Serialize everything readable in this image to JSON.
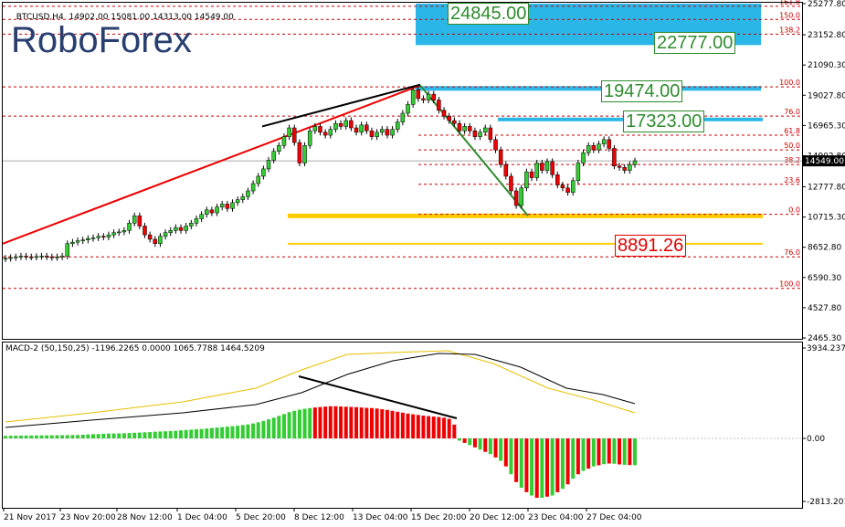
{
  "header": {
    "symbol": "BTCUSD,H4",
    "ohlc": "14902.00 15081.00 14313.00 14549.00",
    "macd": "MACD-2 (50,150,25) -1196.2265 0.0000 1065.7788 1464.5209"
  },
  "logo": {
    "text": "RoboForex"
  },
  "colors": {
    "bull": "#33cc33",
    "bear": "#ee0000",
    "signal": "#e6c000",
    "fib": "#cc0000",
    "zone_blue": "#2bb6e8",
    "zone_yellow": "#ffcc00"
  },
  "chart_data": [
    {
      "type": "candlestick",
      "x_tick_labels": [
        "21 Nov 2017",
        "23 Nov 20:00",
        "28 Nov 12:00",
        "1 Dec 04:00",
        "5 Dec 20:00",
        "8 Dec 12:00",
        "13 Dec 04:00",
        "15 Dec 20:00",
        "20 Dec 12:00",
        "23 Dec 04:00",
        "27 Dec 04:00"
      ],
      "y_tick_labels": [
        "25277.80",
        "23152.80",
        "21090.30",
        "19027.80",
        "16965.30",
        "14902.80",
        "12777.80",
        "10715.30",
        "8652.80",
        "6590.30",
        "4527.80",
        "2465.30"
      ],
      "ylim": [
        2465.3,
        25277.8
      ],
      "current_price": "14549.00",
      "key_levels": [
        "24845.00",
        "22777.00",
        "19474.00",
        "17323.00",
        "8891.26"
      ],
      "fib_labels": [
        {
          "label": "161.8",
          "value": 25100
        },
        {
          "label": "150.0",
          "value": 24200
        },
        {
          "label": "138.2",
          "value": 23200
        },
        {
          "label": "100.0",
          "value": 19600
        },
        {
          "label": "76.0",
          "value": 17600
        },
        {
          "label": "61.8",
          "value": 16300
        },
        {
          "label": "50.0",
          "value": 15300
        },
        {
          "label": "38.2",
          "value": 14300
        },
        {
          "label": "23.6",
          "value": 12950
        },
        {
          "label": "0.0",
          "value": 10900
        },
        {
          "label": "76.0",
          "value": 8000
        },
        {
          "label": "100.0",
          "value": 5850
        }
      ],
      "closes": [
        7900,
        7950,
        8000,
        8050,
        8000,
        7980,
        8020,
        8050,
        8000,
        7950,
        8000,
        8050,
        8900,
        9000,
        9100,
        9150,
        9250,
        9300,
        9400,
        9350,
        9500,
        9650,
        9700,
        9800,
        10300,
        10800,
        10100,
        9500,
        9200,
        8900,
        9400,
        9650,
        9800,
        10000,
        9800,
        10100,
        10300,
        10600,
        10900,
        11200,
        11000,
        11400,
        11600,
        11300,
        11700,
        11900,
        12100,
        12500,
        13000,
        13500,
        14000,
        14600,
        15200,
        15600,
        16200,
        16800,
        15800,
        14400,
        15600,
        16600,
        16900,
        16500,
        16300,
        16700,
        17100,
        16900,
        17300,
        16800,
        16500,
        17000,
        16600,
        16200,
        16500,
        16700,
        16300,
        16700,
        17200,
        17800,
        18400,
        19400,
        18800,
        18700,
        19100,
        18700,
        18000,
        17600,
        17300,
        17100,
        16600,
        16900,
        16600,
        16200,
        16500,
        16800,
        16000,
        15300,
        14300,
        13500,
        12500,
        11500,
        12700,
        13800,
        13400,
        14400,
        13900,
        14500,
        13600,
        12900,
        12700,
        12400,
        13200,
        14400,
        15100,
        15600,
        15300,
        15700,
        16000,
        15400,
        14200,
        14100,
        13900,
        14300,
        14550
      ],
      "macd_hist": [
        110,
        115,
        120,
        122,
        124,
        126,
        128,
        130,
        132,
        134,
        136,
        138,
        140,
        145,
        150,
        160,
        170,
        180,
        190,
        200,
        210,
        215,
        220,
        225,
        235,
        245,
        255,
        265,
        275,
        290,
        300,
        310,
        320,
        335,
        350,
        365,
        380,
        395,
        410,
        430,
        450,
        470,
        490,
        510,
        530,
        550,
        580,
        610,
        650,
        700,
        760,
        830,
        900,
        980,
        1060,
        1140,
        1200,
        1250,
        1290,
        1320,
        1345,
        1365,
        1385,
        1400,
        1400,
        1390,
        1380,
        1370,
        1360,
        1345,
        1330,
        1320,
        1300,
        1270,
        1240,
        1200,
        1160,
        1120,
        1080,
        1050,
        1020,
        990,
        970,
        950,
        930,
        900,
        850,
        600,
        -100,
        -200,
        -300,
        -400,
        -500,
        -600,
        -700,
        -850,
        -1000,
        -1250,
        -1600,
        -1950,
        -2200,
        -2400,
        -2550,
        -2650,
        -2650,
        -2600,
        -2550,
        -2400,
        -2250,
        -2050,
        -1800,
        -1600,
        -1450,
        -1350,
        -1250,
        -1200,
        -1150,
        -1120,
        -1130,
        -1160,
        -1180,
        -1190,
        -1196
      ],
      "macd_ylim": [
        -2813.2016,
        3934.2378
      ],
      "macd_y_tick_labels": [
        "3934.2378",
        "0.00",
        "-2813.2016"
      ]
    }
  ]
}
